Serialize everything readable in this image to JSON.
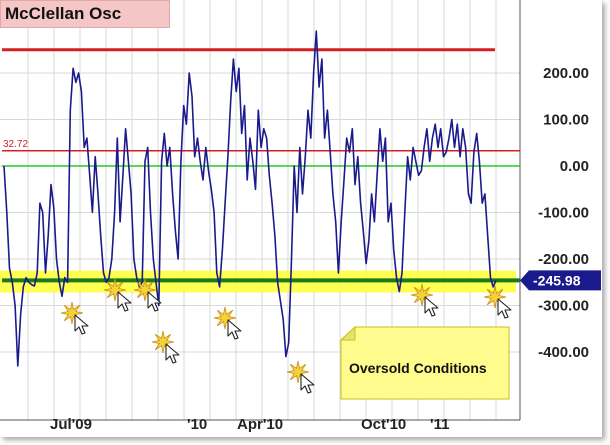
{
  "chart_data": {
    "type": "line",
    "title": "McClellan Osc",
    "x_tick_labels": [
      "Jul'09",
      "'10",
      "Apr'10",
      "Oct'10",
      "'11"
    ],
    "y_tick_labels": [
      "200.00",
      "100.00",
      "0.00",
      "-100.00",
      "-200.00",
      "-300.00",
      "-400.00"
    ],
    "ylim": [
      -490,
      300
    ],
    "reference_lines": [
      {
        "value": 250,
        "color": "#d42020"
      },
      {
        "value": 32.72,
        "label": "32.72",
        "color": "#d42020"
      },
      {
        "value": 0,
        "color": "#22cc22"
      },
      {
        "value": -245.98,
        "color": "#1a7a1a"
      }
    ],
    "last_value_label": "-245.98",
    "oversold_band": [
      -272,
      -225
    ],
    "annotation_text": "Oversold Conditions",
    "series": [
      {
        "color": "#1a1a8c",
        "y": [
          0,
          -100,
          -220,
          -250,
          -300,
          -430,
          -320,
          -260,
          -240,
          -250,
          -255,
          -258,
          -230,
          -80,
          -100,
          -230,
          -150,
          -40,
          -90,
          -200,
          -250,
          -280,
          -240,
          -250,
          120,
          210,
          180,
          200,
          160,
          40,
          60,
          -20,
          -100,
          20,
          -60,
          -150,
          -230,
          -250,
          -240,
          -200,
          -100,
          60,
          -120,
          -20,
          80,
          10,
          -60,
          -200,
          -240,
          -260,
          -250,
          10,
          40,
          -100,
          -200,
          -250,
          -300,
          10,
          70,
          0,
          40,
          -60,
          -140,
          -200,
          10,
          130,
          90,
          200,
          150,
          20,
          60,
          10,
          -30,
          40,
          -10,
          -50,
          -100,
          -230,
          -260,
          -180,
          -80,
          20,
          140,
          230,
          160,
          210,
          70,
          130,
          -30,
          60,
          10,
          -50,
          120,
          40,
          80,
          60,
          -20,
          -80,
          -150,
          -250,
          -290,
          -330,
          -410,
          -380,
          -200,
          0,
          -100,
          40,
          -60,
          20,
          120,
          60,
          200,
          290,
          170,
          230,
          60,
          120,
          30,
          -60,
          -120,
          -230,
          -120,
          -30,
          60,
          30,
          80,
          -40,
          20,
          -80,
          -140,
          -210,
          -160,
          -60,
          -120,
          -20,
          80,
          10,
          60,
          -120,
          -80,
          -180,
          -240,
          -270,
          -230,
          -100,
          20,
          -30,
          40,
          10,
          -20,
          -10,
          40,
          80,
          10,
          60,
          90,
          40,
          80,
          20,
          30,
          60,
          100,
          40,
          90,
          20,
          80,
          40,
          -60,
          -80,
          30,
          70,
          10,
          -80,
          -60,
          -150,
          -240,
          -260,
          -246
        ]
      }
    ]
  }
}
